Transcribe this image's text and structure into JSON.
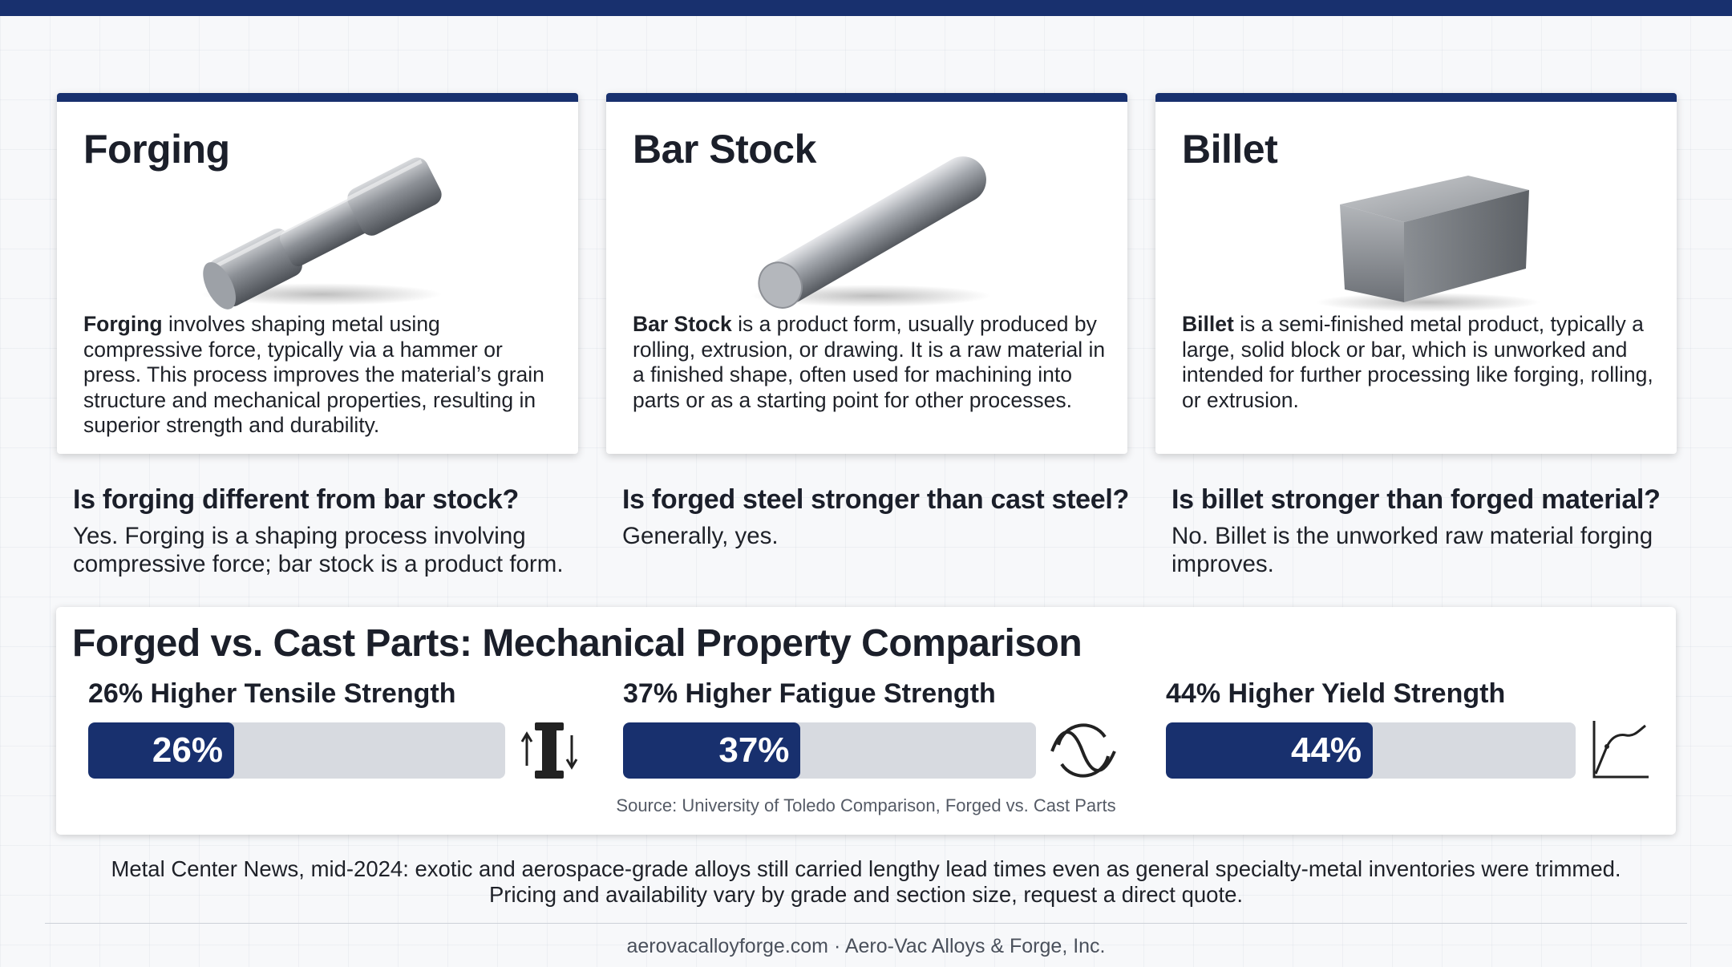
{
  "cards": [
    {
      "title": "Forging",
      "lead": "Forging",
      "text": " involves shaping metal using compressive force, typically via a hammer or press. This process improves the material’s grain structure and mechanical properties, resulting in superior strength and durability."
    },
    {
      "title": "Bar Stock",
      "lead": "Bar Stock",
      "text": " is a product form, usually produced by rolling, extrusion, or drawing. It is a raw material in a finished shape, often used for machining into parts or as a starting point for other processes."
    },
    {
      "title": "Billet",
      "lead": "Billet",
      "text": " is a semi-finished metal product, typically a large, solid block or bar, which is unworked and intended for further processing like forging, rolling, or extrusion."
    }
  ],
  "faqs": [
    {
      "question": "Is forging different from bar stock?",
      "answer": "Yes. Forging is a shaping process involving compressive force; bar stock is a product form."
    },
    {
      "question": "Is forged steel stronger than cast steel?",
      "answer": "Generally, yes."
    },
    {
      "question": "Is billet stronger than forged material?",
      "answer": "No. Billet is the unworked raw material forging improves."
    }
  ],
  "comparison": {
    "title": "Forged vs. Cast Parts: Mechanical Property Comparison",
    "metrics": [
      {
        "label": "26% Higher Tensile Strength",
        "value_text": "26%",
        "fraction": 0.35,
        "icon": "tensile-icon"
      },
      {
        "label": "37% Higher Fatigue Strength",
        "value_text": "37%",
        "fraction": 0.43,
        "icon": "fatigue-wave-icon"
      },
      {
        "label": "44% Higher Yield Strength",
        "value_text": "44%",
        "fraction": 0.505,
        "icon": "stress-strain-curve-icon"
      }
    ],
    "source": "Source: University of Toledo Comparison, Forged vs. Cast Parts"
  },
  "note": {
    "line1": "Metal Center News, mid-2024: exotic and aerospace-grade alloys still carried lengthy lead times even as general specialty-metal inventories were trimmed.",
    "line2": "Pricing and availability vary by grade and section size, request a direct quote."
  },
  "footer": "aerovacalloyforge.com · Aero-Vac Alloys & Forge, Inc.",
  "colors": {
    "accent": "#18306e",
    "track": "#d7dae0"
  }
}
